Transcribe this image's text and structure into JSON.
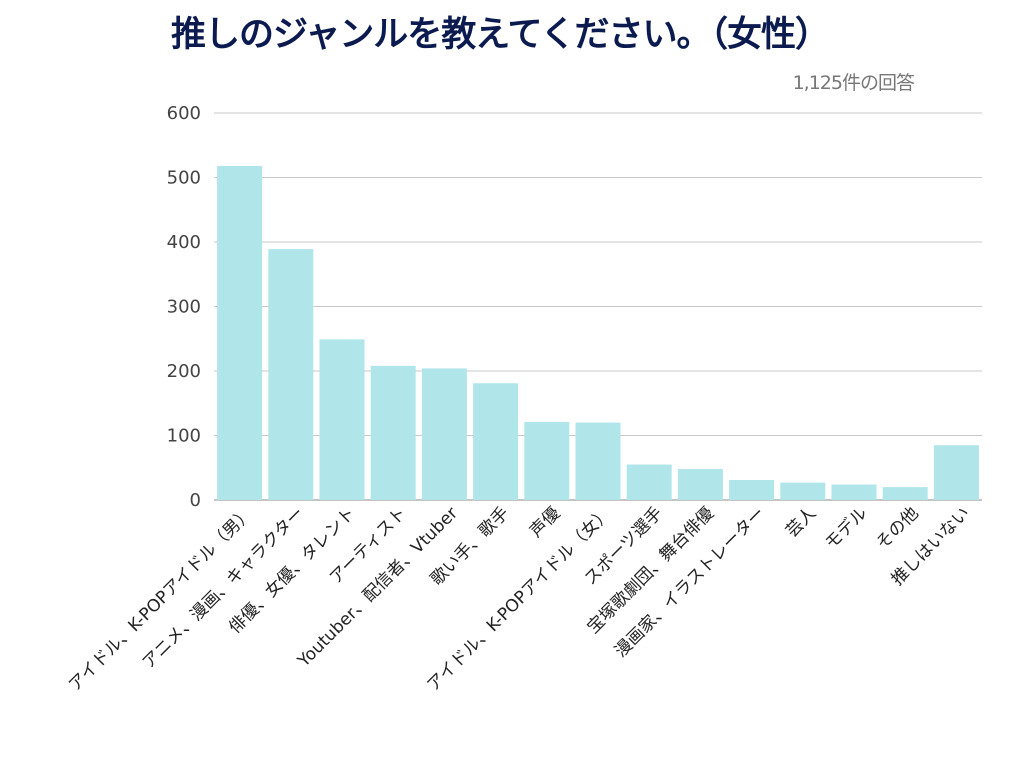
{
  "chart_data": {
    "type": "bar",
    "title": "推しのジャンルを教えてください。（女性）",
    "subtitle": "1,125件の回答",
    "xlabel": "",
    "ylabel": "",
    "ylim": [
      0,
      600
    ],
    "yticks": [
      0,
      100,
      200,
      300,
      400,
      500,
      600
    ],
    "grid": true,
    "categories": [
      "アイドル、K-POPアイドル（男）",
      "アニメ、漫画、キャラクター",
      "俳優、女優、タレント",
      "アーティスト",
      "Youtuber、配信者、Vtuber",
      "歌い手、歌手",
      "声優",
      "アイドル、K-POPアイドル（女）",
      "スポーツ選手",
      "宝塚歌劇団、舞台俳優",
      "漫画家、イラストレーター",
      "芸人",
      "モデル",
      "その他",
      "推しはいない"
    ],
    "values": [
      518,
      389,
      249,
      208,
      204,
      181,
      121,
      120,
      55,
      48,
      31,
      27,
      24,
      20,
      85
    ],
    "colors": {
      "bar": "#b0e6ea",
      "grid": "#c8c8c8",
      "axis": "#888888",
      "title": "#0b1a4f"
    }
  }
}
